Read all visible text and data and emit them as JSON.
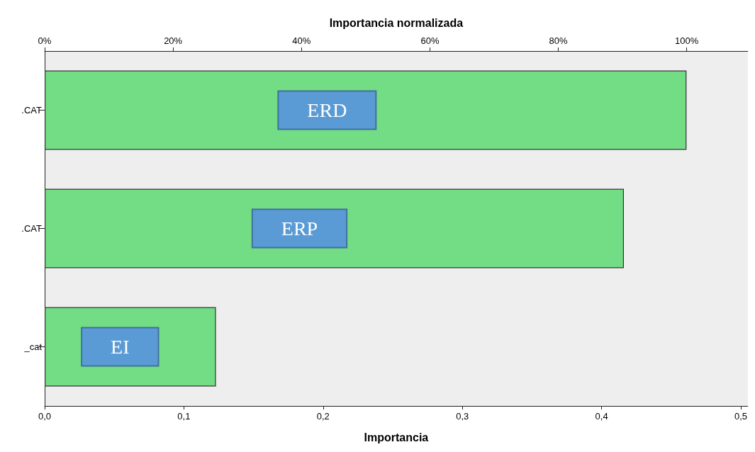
{
  "chart_data": {
    "type": "bar",
    "orientation": "horizontal",
    "categories": [
      ".CAT",
      ".CAT",
      "_cat"
    ],
    "values": [
      0.461,
      0.416,
      0.123
    ],
    "color": "#72dd84",
    "xlabel": "Importancia",
    "x2label": "Importancia normalizada",
    "xlim": [
      0,
      0.505
    ],
    "xticks": [
      {
        "value": 0,
        "label": "0,0"
      },
      {
        "value": 0.1,
        "label": "0,1"
      },
      {
        "value": 0.2,
        "label": "0,2"
      },
      {
        "value": 0.3,
        "label": "0,3"
      },
      {
        "value": 0.4,
        "label": "0,4"
      },
      {
        "value": 0.5,
        "label": "0,5"
      }
    ],
    "x2lim": [
      0,
      109.5
    ],
    "x2ticks": [
      {
        "value": 0,
        "label": "0%"
      },
      {
        "value": 20,
        "label": "20%"
      },
      {
        "value": 40,
        "label": "40%"
      },
      {
        "value": 60,
        "label": "60%"
      },
      {
        "value": 80,
        "label": "80%"
      },
      {
        "value": 100,
        "label": "100%"
      }
    ],
    "annotations": [
      "ERD",
      "ERP",
      "EI"
    ],
    "grid": false
  }
}
